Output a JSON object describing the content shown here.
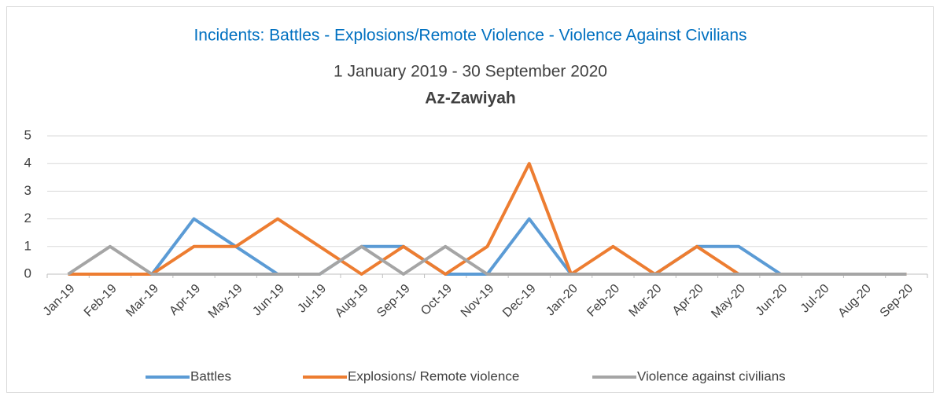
{
  "chart_data": {
    "type": "line",
    "title": "Incidents: Battles - Explosions/Remote Violence - Violence Against Civilians",
    "subtitle": "1 January 2019 -  30 September 2020",
    "location": "Az-Zawiyah",
    "categories": [
      "Jan-19",
      "Feb-19",
      "Mar-19",
      "Apr-19",
      "May-19",
      "Jun-19",
      "Jul-19",
      "Aug-19",
      "Sep-19",
      "Oct-19",
      "Nov-19",
      "Dec-19",
      "Jan-20",
      "Feb-20",
      "Mar-20",
      "Apr-20",
      "May-20",
      "Jun-20",
      "Jul-20",
      "Aug-20",
      "Sep-20"
    ],
    "series": [
      {
        "name": "Battles",
        "color": "#5b9bd5",
        "values": [
          0,
          0,
          0,
          2,
          1,
          0,
          0,
          1,
          1,
          0,
          0,
          2,
          0,
          0,
          0,
          1,
          1,
          0,
          0,
          0,
          0
        ]
      },
      {
        "name": "Explosions/ Remote violence",
        "color": "#ed7d31",
        "values": [
          0,
          0,
          0,
          1,
          1,
          2,
          1,
          0,
          1,
          0,
          1,
          4,
          0,
          1,
          0,
          1,
          0,
          0,
          0,
          0,
          0
        ]
      },
      {
        "name": "Violence against civilians",
        "color": "#a5a5a5",
        "values": [
          0,
          1,
          0,
          0,
          0,
          0,
          0,
          1,
          0,
          1,
          0,
          0,
          0,
          0,
          0,
          0,
          0,
          0,
          0,
          0,
          0
        ]
      }
    ],
    "ylim": [
      0,
      5
    ],
    "yticks": [
      0,
      1,
      2,
      3,
      4,
      5
    ],
    "grid": true,
    "legend": "bottom"
  }
}
